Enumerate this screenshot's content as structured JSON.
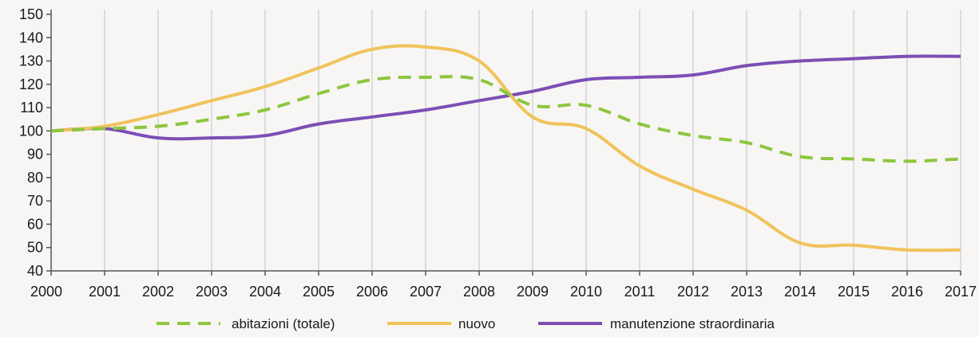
{
  "chart_data": {
    "type": "line",
    "title": "",
    "xlabel": "",
    "ylabel": "",
    "x": [
      2000,
      2001,
      2002,
      2003,
      2004,
      2005,
      2006,
      2007,
      2008,
      2009,
      2010,
      2011,
      2012,
      2013,
      2014,
      2015,
      2016,
      2017
    ],
    "ylim": [
      40,
      150
    ],
    "yticks": [
      40,
      50,
      60,
      70,
      80,
      90,
      100,
      110,
      120,
      130,
      140,
      150
    ],
    "grid": "vertical",
    "legend_position": "bottom",
    "series": [
      {
        "name": "abitazioni (totale)",
        "color": "#8dc63f",
        "style": "dashed",
        "values": [
          100,
          101,
          102,
          105,
          109,
          116,
          122,
          123,
          122,
          111,
          111,
          103,
          98,
          95,
          89,
          88,
          87,
          88
        ]
      },
      {
        "name": "nuovo",
        "color": "#f0c35a",
        "style": "solid",
        "values": [
          100,
          102,
          107,
          113,
          119,
          127,
          135,
          136,
          130,
          106,
          101,
          85,
          75,
          66,
          52,
          51,
          49,
          49
        ]
      },
      {
        "name": "manutenzione straordinaria",
        "color": "#7b4fb5",
        "style": "solid",
        "values": [
          100,
          101,
          97,
          97,
          98,
          103,
          106,
          109,
          113,
          117,
          122,
          123,
          124,
          128,
          130,
          131,
          132,
          132
        ]
      }
    ]
  }
}
